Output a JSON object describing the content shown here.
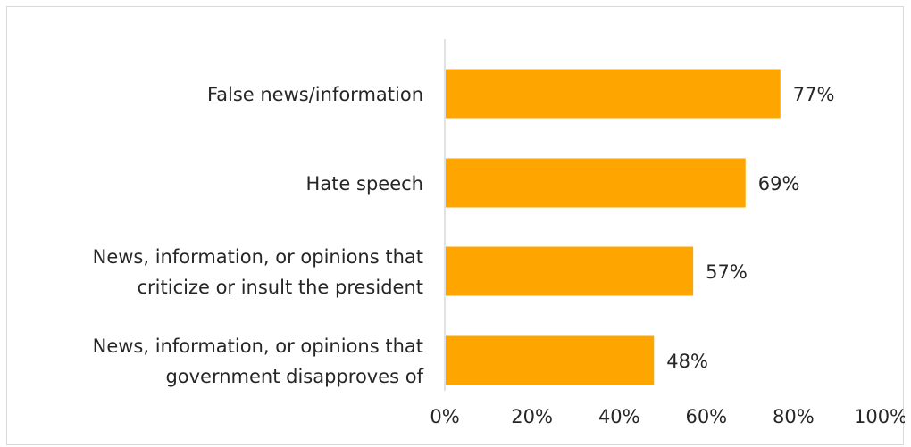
{
  "chart_data": {
    "type": "bar",
    "orientation": "horizontal",
    "categories": [
      [
        "False news/information"
      ],
      [
        "Hate speech"
      ],
      [
        "News, information, or opinions that",
        "criticize or insult the president"
      ],
      [
        "News, information, or opinions that",
        "government disapproves of"
      ]
    ],
    "values": [
      77,
      69,
      57,
      48
    ],
    "value_labels": [
      "77%",
      "69%",
      "57%",
      "48%"
    ],
    "xlim": [
      0,
      100
    ],
    "x_ticks": [
      0,
      20,
      40,
      60,
      80,
      100
    ],
    "x_tick_labels": [
      "0%",
      "20%",
      "40%",
      "60%",
      "80%",
      "100%"
    ],
    "bar_color": "#FFA500",
    "grid": false,
    "legend": "none"
  }
}
